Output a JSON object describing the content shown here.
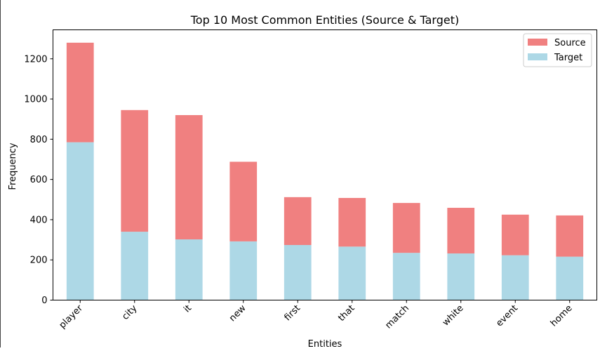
{
  "chart_data": {
    "type": "bar",
    "stacked": true,
    "title": "Top 10 Most Common Entities (Source & Target)",
    "xlabel": "Entities",
    "ylabel": "Frequency",
    "categories": [
      "player",
      "city",
      "it",
      "new",
      "first",
      "that",
      "match",
      "white",
      "event",
      "home"
    ],
    "series": [
      {
        "name": "Target",
        "color": "#add8e6",
        "values": [
          785,
          340,
          302,
          292,
          274,
          266,
          235,
          232,
          223,
          216
        ]
      },
      {
        "name": "Source",
        "color": "#f08080",
        "values": [
          495,
          605,
          618,
          396,
          238,
          242,
          248,
          227,
          202,
          205
        ]
      }
    ],
    "legend_order": [
      "Source",
      "Target"
    ],
    "ylim": [
      0,
      1344
    ],
    "yticks": [
      0,
      200,
      400,
      600,
      800,
      1000,
      1200
    ],
    "legend_position": "top-right",
    "grid": false
  }
}
